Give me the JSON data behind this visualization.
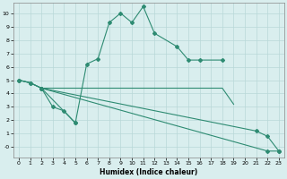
{
  "xlabel": "Humidex (Indice chaleur)",
  "bg_color": "#d9eeee",
  "grid_color": "#b8d8d8",
  "line_color": "#2e8b72",
  "xlim": [
    -0.5,
    23.5
  ],
  "ylim": [
    -0.8,
    10.8
  ],
  "xticks": [
    0,
    1,
    2,
    3,
    4,
    5,
    6,
    7,
    8,
    9,
    10,
    11,
    12,
    13,
    14,
    15,
    16,
    17,
    18,
    19,
    20,
    21,
    22,
    23
  ],
  "yticks": [
    0,
    1,
    2,
    3,
    4,
    5,
    6,
    7,
    8,
    9,
    10
  ],
  "ytick_labels": [
    "-0",
    "1",
    "2",
    "3",
    "4",
    "5",
    "6",
    "7",
    "8",
    "9",
    "10"
  ],
  "line1_x": [
    0,
    1,
    2,
    5,
    6,
    7,
    8,
    9,
    10,
    11,
    12,
    14,
    15,
    16,
    18
  ],
  "line1_y": [
    5.0,
    4.8,
    4.4,
    1.8,
    6.2,
    6.6,
    9.3,
    10.0,
    9.3,
    10.5,
    8.5,
    7.5,
    6.5,
    6.5,
    6.5
  ],
  "line2_x": [
    0,
    1,
    2,
    3,
    4,
    5,
    6,
    7,
    8,
    9,
    10,
    11,
    12,
    13,
    14,
    15,
    16,
    17,
    18,
    19
  ],
  "line2_y": [
    5.0,
    4.8,
    4.4,
    4.4,
    4.4,
    4.4,
    4.4,
    4.4,
    4.4,
    4.4,
    4.4,
    4.4,
    4.4,
    4.4,
    4.4,
    4.4,
    4.4,
    4.4,
    4.4,
    3.2
  ],
  "line3_x": [
    0,
    1,
    2,
    3,
    4,
    5
  ],
  "line3_y": [
    5.0,
    4.8,
    4.4,
    3.0,
    2.7,
    1.8
  ],
  "line4_x": [
    2,
    21,
    22,
    23
  ],
  "line4_y": [
    4.4,
    1.2,
    0.8,
    -0.3
  ],
  "line5_x": [
    2,
    22,
    23
  ],
  "line5_y": [
    4.4,
    -0.3,
    -0.3
  ]
}
